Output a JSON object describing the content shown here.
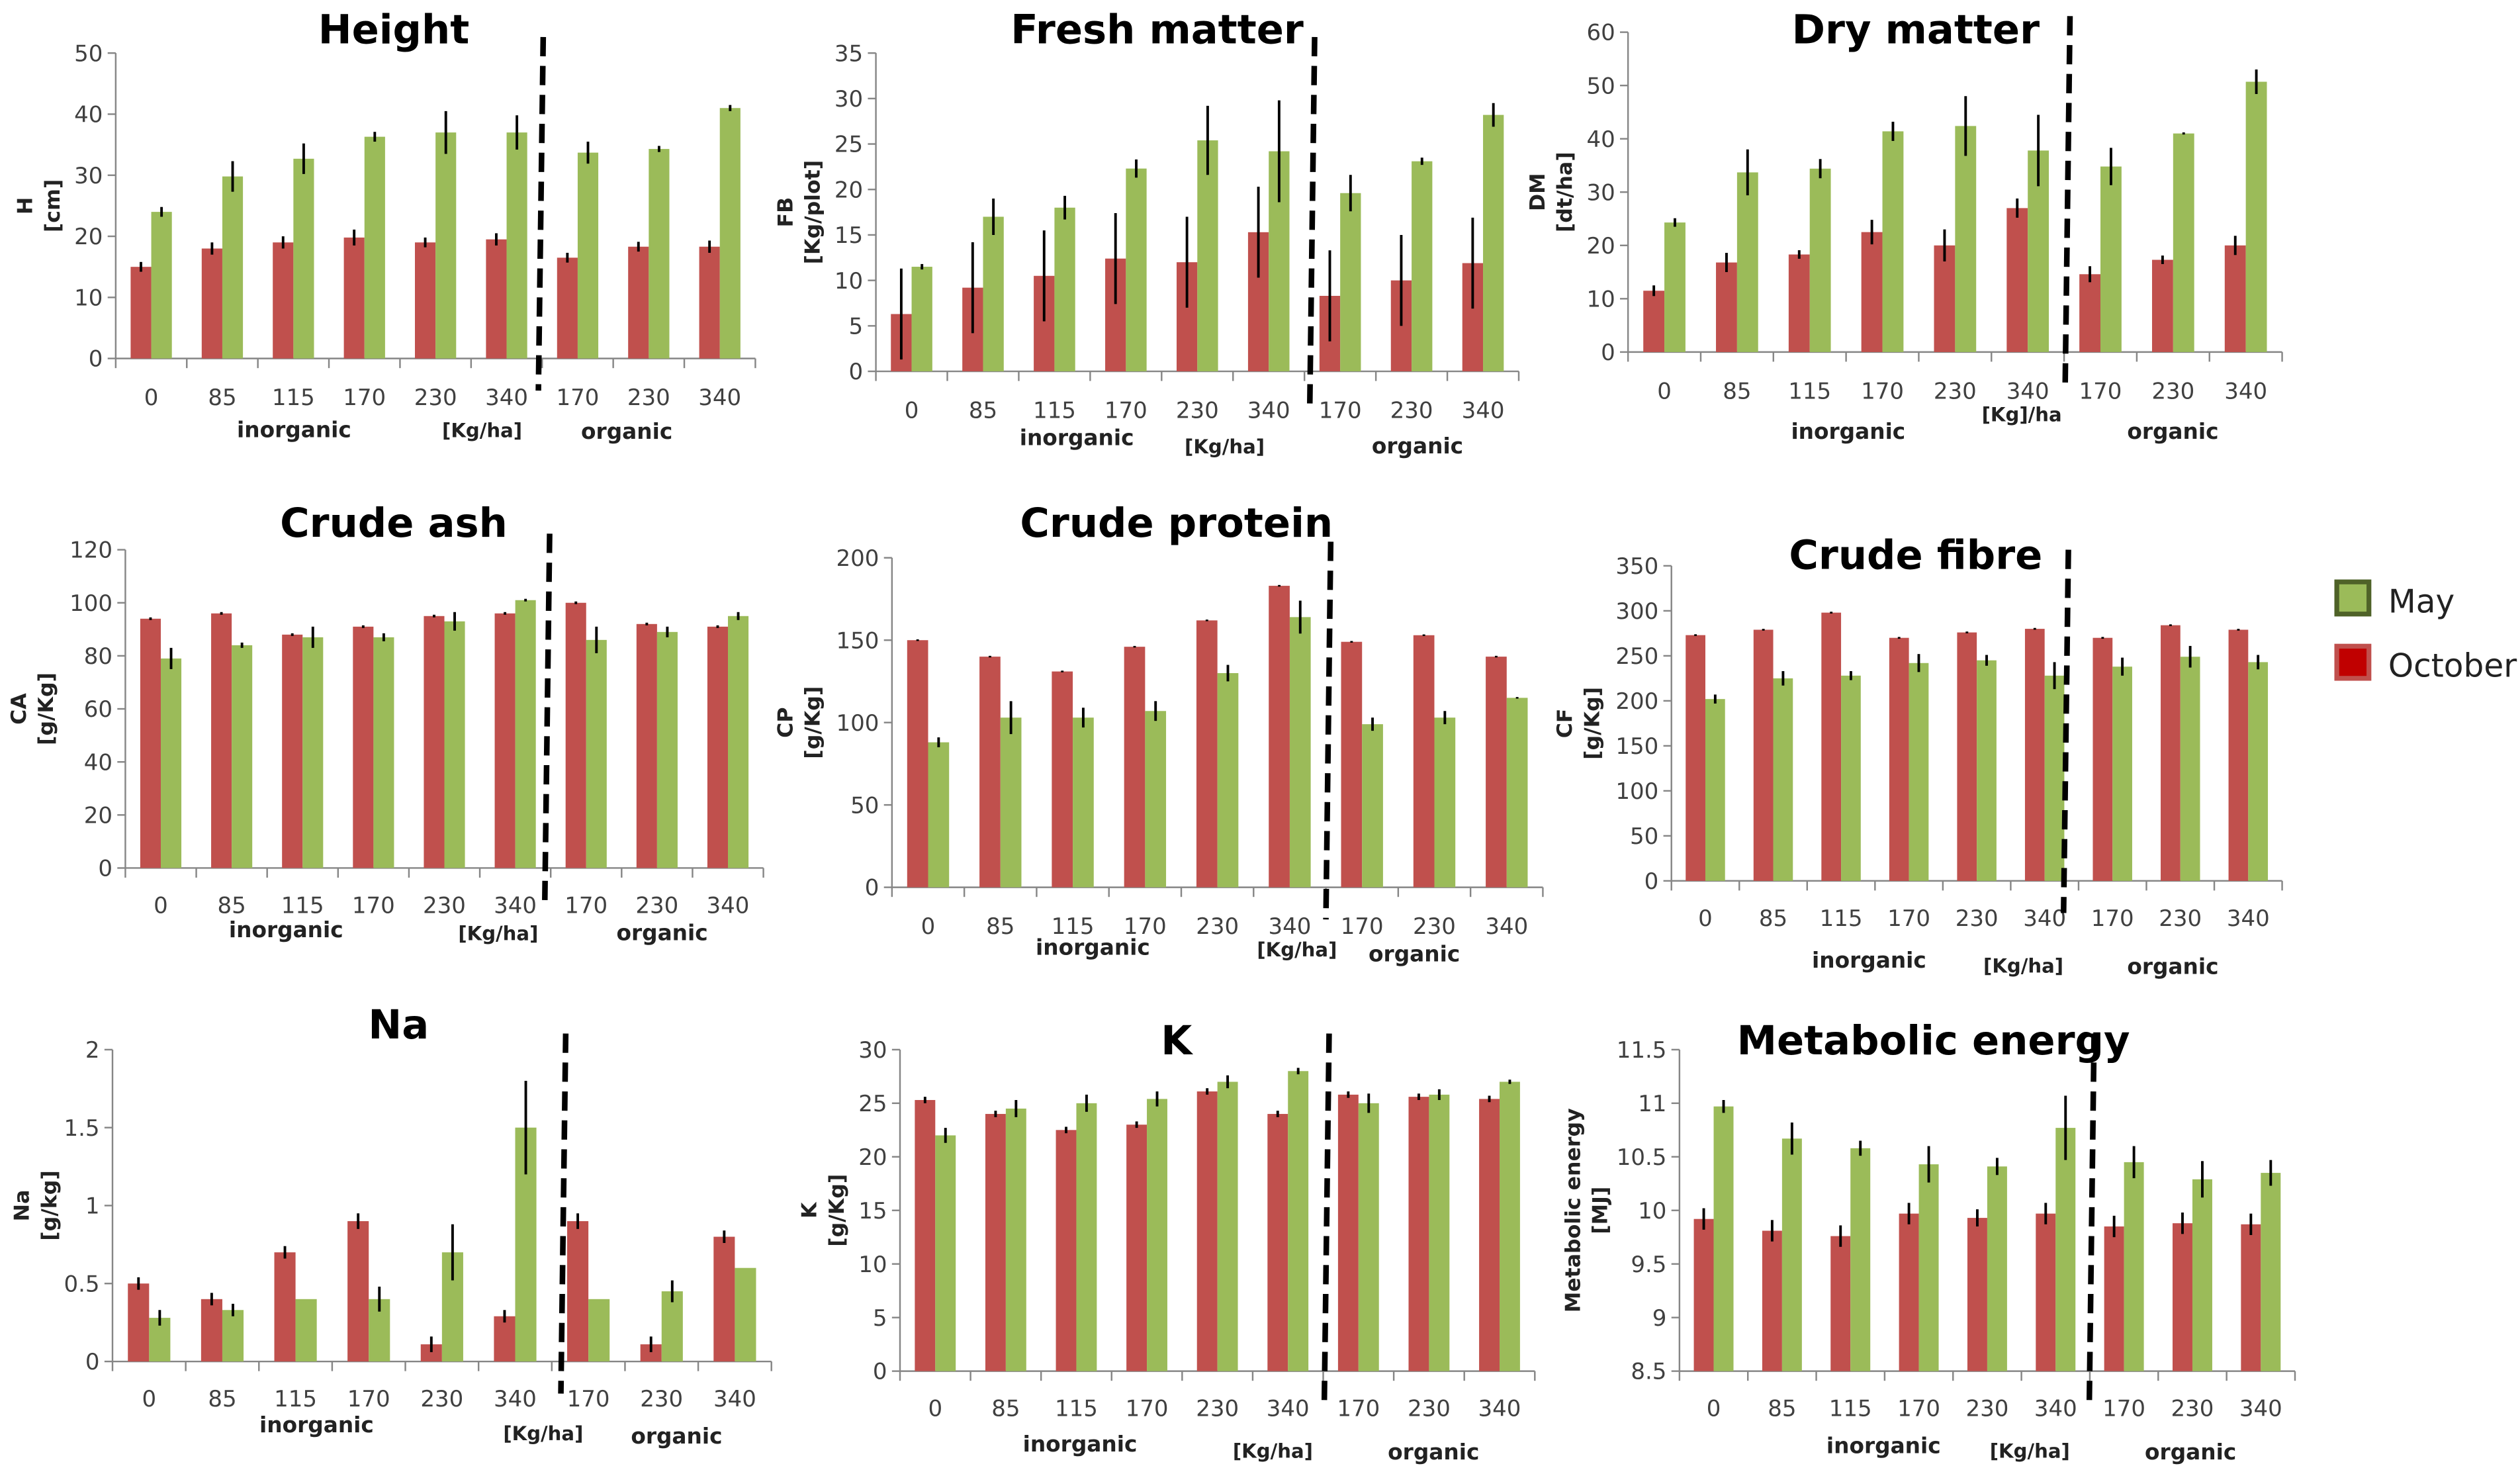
{
  "chart_data": [
    {
      "type": "bar",
      "title": "Height",
      "ylabel": "H",
      "yunit": "[cm]",
      "ylim": [
        0,
        50
      ],
      "ystep": 10,
      "categories": [
        "0",
        "85",
        "115",
        "170",
        "230",
        "340",
        "170",
        "230",
        "340"
      ],
      "group_labels": {
        "left": "inorganic",
        "unit": "[Kg/ha]",
        "right": "organic"
      },
      "series": [
        {
          "name": "October",
          "values": [
            15,
            18,
            19,
            19.8,
            19,
            19.5,
            16.5,
            18.3,
            18.3
          ],
          "err": [
            0.8,
            1,
            1,
            1.3,
            0.8,
            1,
            0.8,
            0.8,
            1
          ]
        },
        {
          "name": "May",
          "values": [
            24,
            29.8,
            32.7,
            36.3,
            37,
            37,
            33.7,
            34.3,
            41
          ],
          "err": [
            0.8,
            2.5,
            2.5,
            0.8,
            3.5,
            2.8,
            1.8,
            0.5,
            0.5
          ]
        }
      ]
    },
    {
      "type": "bar",
      "title": "Fresh matter",
      "ylabel": "FB",
      "yunit": "[Kg/plot]",
      "ylim": [
        0,
        35
      ],
      "ystep": 5,
      "categories": [
        "0",
        "85",
        "115",
        "170",
        "230",
        "340",
        "170",
        "230",
        "340"
      ],
      "group_labels": {
        "left": "inorganic",
        "unit": "[Kg/ha]",
        "right": "organic"
      },
      "series": [
        {
          "name": "October",
          "values": [
            6.3,
            9.2,
            10.5,
            12.4,
            12,
            15.3,
            8.3,
            10,
            11.9
          ],
          "err": [
            5,
            5,
            5,
            5,
            5,
            5,
            5,
            5,
            5
          ]
        },
        {
          "name": "May",
          "values": [
            11.5,
            17,
            18,
            22.3,
            25.4,
            24.2,
            19.6,
            23.1,
            28.2
          ],
          "err": [
            0.3,
            2,
            1.3,
            1,
            3.8,
            5.6,
            2,
            0.4,
            1.3
          ]
        }
      ]
    },
    {
      "type": "bar",
      "title": "Dry matter",
      "ylabel": "DM",
      "yunit": "[dt/ha]",
      "ylim": [
        0,
        60
      ],
      "ystep": 10,
      "categories": [
        "0",
        "85",
        "115",
        "170",
        "230",
        "340",
        "170",
        "230",
        "340"
      ],
      "group_labels": {
        "left": "inorganic",
        "unit": "[Kg]/ha",
        "right": "organic"
      },
      "series": [
        {
          "name": "October",
          "values": [
            11.5,
            16.8,
            18.3,
            22.5,
            20,
            27,
            14.6,
            17.3,
            20
          ],
          "err": [
            1,
            1.8,
            0.8,
            2.3,
            3,
            1.8,
            1.5,
            0.8,
            1.8
          ]
        },
        {
          "name": "May",
          "values": [
            24.3,
            33.7,
            34.4,
            41.4,
            42.4,
            37.8,
            34.8,
            41,
            50.7
          ],
          "err": [
            0.8,
            4.3,
            1.8,
            1.8,
            5.6,
            6.7,
            3.5,
            0.2,
            2.3
          ]
        }
      ]
    },
    {
      "type": "bar",
      "title": "Crude ash",
      "ylabel": "CA",
      "yunit": "[g/Kg]",
      "ylim": [
        0,
        120
      ],
      "ystep": 20,
      "categories": [
        "0",
        "85",
        "115",
        "170",
        "230",
        "340",
        "170",
        "230",
        "340"
      ],
      "group_labels": {
        "left": "inorganic",
        "unit": "[Kg/ha]",
        "right": "organic"
      },
      "series": [
        {
          "name": "October",
          "values": [
            94,
            96,
            88,
            91,
            95,
            96,
            100,
            92,
            91
          ],
          "err": [
            0.5,
            0.5,
            0.5,
            0.5,
            0.5,
            0.5,
            0.5,
            0.5,
            0.5
          ]
        },
        {
          "name": "May",
          "values": [
            79,
            84,
            87,
            87,
            93,
            101,
            86,
            89,
            95
          ],
          "err": [
            4,
            1,
            4,
            1.5,
            3.5,
            0.5,
            5,
            2,
            1.5
          ]
        }
      ]
    },
    {
      "type": "bar",
      "title": "Crude protein",
      "ylabel": "CP",
      "yunit": "[g/Kg]",
      "ylim": [
        0,
        200
      ],
      "ystep": 50,
      "categories": [
        "0",
        "85",
        "115",
        "170",
        "230",
        "340",
        "170",
        "230",
        "340"
      ],
      "group_labels": {
        "left": "inorganic",
        "unit": "[Kg/ha]",
        "right": "organic"
      },
      "series": [
        {
          "name": "October",
          "values": [
            150,
            140,
            131,
            146,
            162,
            183,
            149,
            153,
            140
          ],
          "err": [
            0.5,
            0.5,
            0.5,
            0.5,
            0.5,
            0.5,
            0.5,
            0.5,
            0.5
          ]
        },
        {
          "name": "May",
          "values": [
            88,
            103,
            103,
            107,
            130,
            164,
            99,
            103,
            115
          ],
          "err": [
            3,
            10,
            6,
            6,
            5,
            10,
            4,
            4,
            0.5
          ]
        }
      ]
    },
    {
      "type": "bar",
      "title": "Crude fibre",
      "ylabel": "CF",
      "yunit": "[g/Kg]",
      "ylim": [
        0,
        350
      ],
      "ystep": 50,
      "categories": [
        "0",
        "85",
        "115",
        "170",
        "230",
        "340",
        "170",
        "230",
        "340"
      ],
      "group_labels": {
        "left": "inorganic",
        "unit": "[Kg/ha]",
        "right": "organic"
      },
      "series": [
        {
          "name": "October",
          "values": [
            273,
            279,
            298,
            270,
            276,
            280,
            270,
            284,
            279
          ],
          "err": [
            1,
            1,
            1,
            1,
            1,
            1,
            1,
            1,
            1
          ]
        },
        {
          "name": "May",
          "values": [
            202,
            225,
            228,
            242,
            245,
            228,
            238,
            249,
            243
          ],
          "err": [
            5,
            8,
            5,
            10,
            6,
            15,
            10,
            12,
            8
          ]
        }
      ]
    },
    {
      "type": "bar",
      "title": "Na",
      "ylabel": "Na",
      "yunit": "[g/kg]",
      "ylim": [
        0,
        2
      ],
      "ystep": 0.5,
      "categories": [
        "0",
        "85",
        "115",
        "170",
        "230",
        "340",
        "170",
        "230",
        "340"
      ],
      "group_labels": {
        "left": "inorganic",
        "unit": "[Kg/ha]",
        "right": "organic"
      },
      "series": [
        {
          "name": "October",
          "values": [
            0.5,
            0.4,
            0.7,
            0.9,
            0.11,
            0.29,
            0.9,
            0.11,
            0.8
          ],
          "err": [
            0.04,
            0.04,
            0.04,
            0.05,
            0.05,
            0.04,
            0.05,
            0.05,
            0.04
          ]
        },
        {
          "name": "May",
          "values": [
            0.28,
            0.33,
            0.4,
            0.4,
            0.7,
            1.5,
            0.4,
            0.45,
            0.6
          ],
          "err": [
            0.05,
            0.04,
            0,
            0.08,
            0.18,
            0.3,
            0,
            0.07,
            0
          ]
        }
      ]
    },
    {
      "type": "bar",
      "title": "K",
      "ylabel": "K",
      "yunit": "[g/Kg]",
      "ylim": [
        0,
        30
      ],
      "ystep": 5,
      "categories": [
        "0",
        "85",
        "115",
        "170",
        "230",
        "340",
        "170",
        "230",
        "340"
      ],
      "group_labels": {
        "left": "inorganic",
        "unit": "[Kg/ha]",
        "right": "organic"
      },
      "series": [
        {
          "name": "October",
          "values": [
            25.3,
            24,
            22.5,
            23,
            26.1,
            24,
            25.8,
            25.6,
            25.4
          ],
          "err": [
            0.3,
            0.3,
            0.3,
            0.3,
            0.3,
            0.3,
            0.3,
            0.3,
            0.3
          ]
        },
        {
          "name": "May",
          "values": [
            22,
            24.5,
            25,
            25.4,
            27,
            28,
            25,
            25.8,
            27
          ],
          "err": [
            0.7,
            0.8,
            0.8,
            0.7,
            0.6,
            0.3,
            0.9,
            0.5,
            0.2
          ]
        }
      ]
    },
    {
      "type": "bar",
      "title": "Metabolic energy",
      "ylabel": "Metabolic energy",
      "yunit": "[MJ]",
      "ylim": [
        8.5,
        11.5
      ],
      "ystep": 0.5,
      "categories": [
        "0",
        "85",
        "115",
        "170",
        "230",
        "340",
        "170",
        "230",
        "340"
      ],
      "group_labels": {
        "left": "inorganic",
        "unit": "[Kg/ha]",
        "right": "organic"
      },
      "series": [
        {
          "name": "October",
          "values": [
            9.92,
            9.81,
            9.76,
            9.97,
            9.93,
            9.97,
            9.85,
            9.88,
            9.87
          ],
          "err": [
            0.1,
            0.1,
            0.1,
            0.1,
            0.08,
            0.1,
            0.1,
            0.1,
            0.1
          ]
        },
        {
          "name": "May",
          "values": [
            10.97,
            10.67,
            10.58,
            10.43,
            10.41,
            10.77,
            10.45,
            10.29,
            10.35
          ],
          "err": [
            0.06,
            0.15,
            0.07,
            0.17,
            0.08,
            0.3,
            0.15,
            0.17,
            0.12
          ]
        }
      ]
    }
  ],
  "legend": {
    "items": [
      {
        "name": "May",
        "color": "#9bbb59",
        "border": "#4f6228"
      },
      {
        "name": "October",
        "color": "#c00000",
        "border": "#c0504d"
      }
    ]
  },
  "colors": {
    "October": "#c0504d",
    "May": "#9bbb59"
  }
}
